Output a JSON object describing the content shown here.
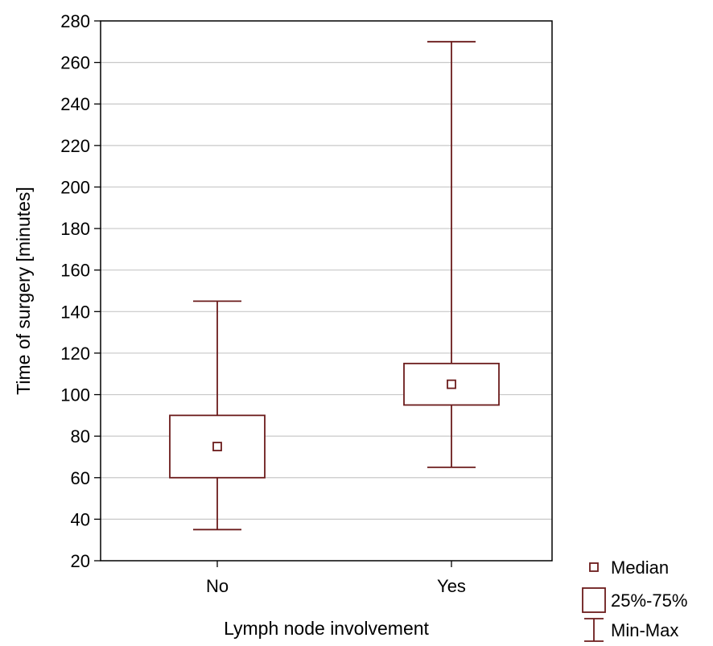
{
  "chart_data": {
    "type": "box",
    "title": "",
    "xlabel": "Lymph node involvement",
    "ylabel": "Time of surgery [minutes]",
    "ylim": [
      20,
      280
    ],
    "yticks": [
      20,
      40,
      60,
      80,
      100,
      120,
      140,
      160,
      180,
      200,
      220,
      240,
      260,
      280
    ],
    "grid": true,
    "categories": [
      "No",
      "Yes"
    ],
    "boxes": [
      {
        "category": "No",
        "min": 35,
        "q1": 60,
        "median": 75,
        "q3": 90,
        "max": 145
      },
      {
        "category": "Yes",
        "min": 65,
        "q1": 95,
        "median": 105,
        "q3": 115,
        "max": 270
      }
    ],
    "legend": {
      "position": "bottom-right",
      "items": [
        {
          "key": "median",
          "label": "Median"
        },
        {
          "key": "box",
          "label": "25%-75%"
        },
        {
          "key": "whisker",
          "label": "Min-Max"
        }
      ]
    },
    "color": "#6b1b1b"
  }
}
